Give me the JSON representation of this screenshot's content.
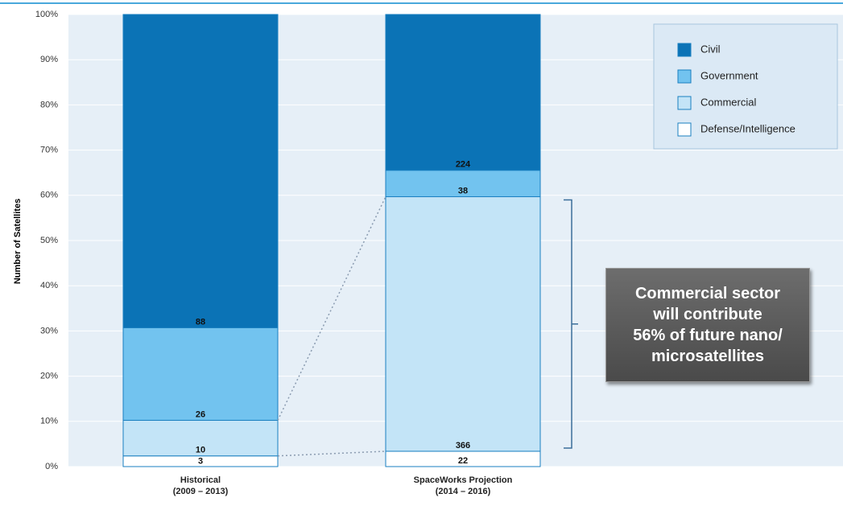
{
  "chart_data": {
    "type": "bar",
    "stacked": "percent",
    "y_label": "Number of Satellites",
    "categories": [
      "Historical\n(2009 – 2013)",
      "SpaceWorks Projection\n(2014 – 2016)"
    ],
    "series": [
      {
        "name": "Defense/Intelligence",
        "color": "#ffffff",
        "values": [
          3,
          22
        ]
      },
      {
        "name": "Commercial",
        "color": "#c3e4f7",
        "values": [
          10,
          366
        ]
      },
      {
        "name": "Government",
        "color": "#72c3ef",
        "values": [
          26,
          38
        ]
      },
      {
        "name": "Civil",
        "color": "#0b73b6",
        "values": [
          88,
          224
        ]
      }
    ],
    "ylim": [
      0,
      100
    ],
    "yticks": [
      {
        "value": 0,
        "label": "0%"
      },
      {
        "value": 10,
        "label": "10%"
      },
      {
        "value": 20,
        "label": "20%"
      },
      {
        "value": 30,
        "label": "30%"
      },
      {
        "value": 40,
        "label": "40%"
      },
      {
        "value": 50,
        "label": "50%"
      },
      {
        "value": 60,
        "label": "60%"
      },
      {
        "value": 70,
        "label": "70%"
      },
      {
        "value": 80,
        "label": "80%"
      },
      {
        "value": 90,
        "label": "90%"
      },
      {
        "value": 100,
        "label": "100%"
      }
    ],
    "grid": true,
    "legend": "upper right",
    "annotation": "Commercial sector\nwill contribute\n56% of future nano/\nmicrosatellites"
  }
}
